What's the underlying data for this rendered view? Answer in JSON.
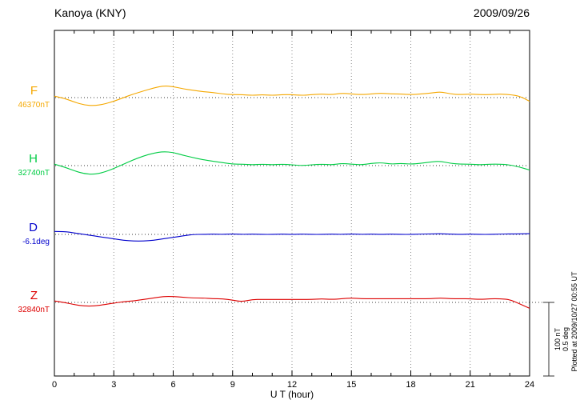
{
  "header": {
    "title": "Kanoya (KNY)",
    "date": "2009/09/26"
  },
  "chart_data": {
    "type": "line",
    "title": "Kanoya (KNY)",
    "subtitle": "2009/09/26",
    "xlabel": "U T (hour)",
    "x_range": [
      0,
      24
    ],
    "x_ticks": [
      "0",
      "3",
      "6",
      "9",
      "12",
      "15",
      "18",
      "21",
      "24"
    ],
    "x_step_hours": 0.5,
    "grid": "dotted vertical lines every 3 hours; dotted horizontal baseline per component",
    "legend_position": "left-margin component labels",
    "series": [
      {
        "name": "F",
        "unit": "nT",
        "baseline_value": 46370,
        "baseline_label": "46370nT",
        "color": "#f5a800",
        "offsets": [
          2,
          -1,
          -6,
          -10,
          -11,
          -9,
          -5,
          0,
          5,
          9,
          13,
          16,
          15,
          12,
          10,
          8,
          7,
          5,
          4,
          4,
          3,
          4,
          3,
          4,
          4,
          3,
          4,
          5,
          4,
          6,
          5,
          4,
          5,
          6,
          5,
          5,
          4,
          5,
          6,
          8,
          5,
          4,
          5,
          4,
          4,
          5,
          4,
          2,
          -5
        ]
      },
      {
        "name": "H",
        "unit": "nT",
        "baseline_value": 32740,
        "baseline_label": "32740nT",
        "color": "#00cc44",
        "offsets": [
          2,
          -2,
          -7,
          -11,
          -12,
          -9,
          -4,
          2,
          8,
          13,
          17,
          19,
          18,
          14,
          11,
          8,
          6,
          4,
          2,
          2,
          1,
          2,
          1,
          2,
          1,
          0,
          1,
          2,
          1,
          3,
          2,
          1,
          3,
          4,
          2,
          3,
          2,
          3,
          5,
          6,
          3,
          2,
          2,
          1,
          2,
          2,
          1,
          -2,
          -6
        ]
      },
      {
        "name": "D",
        "unit": "deg",
        "baseline_value": -6.1,
        "baseline_label": "-6.1deg",
        "color": "#0000cc",
        "offsets": [
          0.02,
          0.02,
          0.01,
          0,
          -0.01,
          -0.02,
          -0.03,
          -0.04,
          -0.045,
          -0.045,
          -0.04,
          -0.03,
          -0.02,
          -0.01,
          0,
          0,
          0.002,
          0,
          0.003,
          0,
          0.002,
          0,
          0,
          0.002,
          0,
          0.002,
          0,
          0,
          0.002,
          0,
          0.003,
          0,
          0.002,
          0,
          0.002,
          0,
          0,
          0.002,
          0.003,
          0.005,
          0.002,
          0,
          0.002,
          0,
          0,
          0.002,
          0.003,
          0.004,
          0.005
        ]
      },
      {
        "name": "Z",
        "unit": "nT",
        "baseline_value": 32840,
        "baseline_label": "32840nT",
        "color": "#dd0000",
        "offsets": [
          2,
          0,
          -3,
          -5,
          -5,
          -3,
          -1,
          1,
          2,
          4,
          6,
          8,
          8,
          7,
          6,
          6,
          5,
          5,
          3,
          1,
          4,
          4,
          4,
          4,
          4,
          4,
          4,
          5,
          4,
          5,
          6,
          5,
          5,
          5,
          5,
          5,
          5,
          5,
          5,
          6,
          5,
          5,
          5,
          4,
          5,
          5,
          4,
          -2,
          -8
        ]
      }
    ],
    "scale": {
      "nt": 100,
      "deg": 0.5,
      "labels": [
        "100 nT",
        "0.5 deg"
      ]
    },
    "plotted_at": "Plotted at 2009/10/27 00:55 UT"
  }
}
